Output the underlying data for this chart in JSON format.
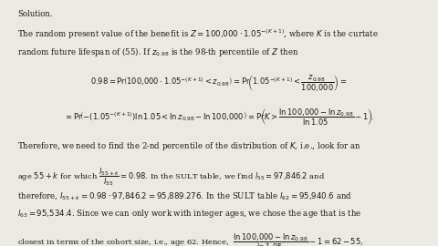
{
  "background_color": "#ece9e3",
  "text_color": "#1a1a1a",
  "figsize": [
    4.8,
    2.7
  ],
  "dpi": 100,
  "fs": 6.2,
  "fs_eq": 6.0
}
